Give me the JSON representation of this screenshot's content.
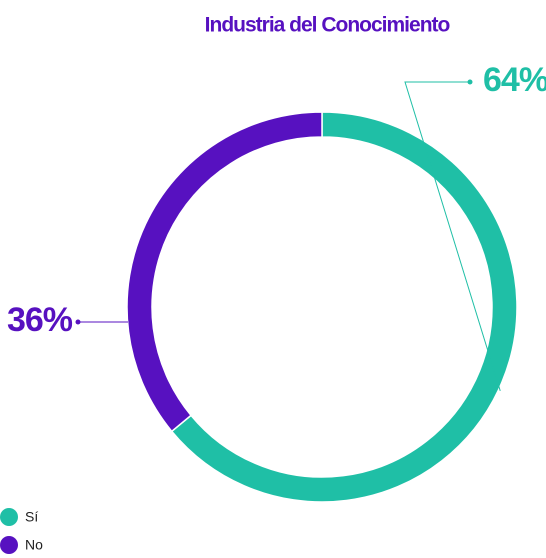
{
  "chart_data": {
    "type": "pie",
    "donut": true,
    "title": "Industria del Conocimiento",
    "categories": [
      "Sí",
      "No"
    ],
    "values": [
      64,
      36
    ],
    "value_labels": [
      "64%",
      "36%"
    ],
    "colors": [
      "#1fbfa6",
      "#5711c0"
    ],
    "legend": "bottom-left"
  }
}
